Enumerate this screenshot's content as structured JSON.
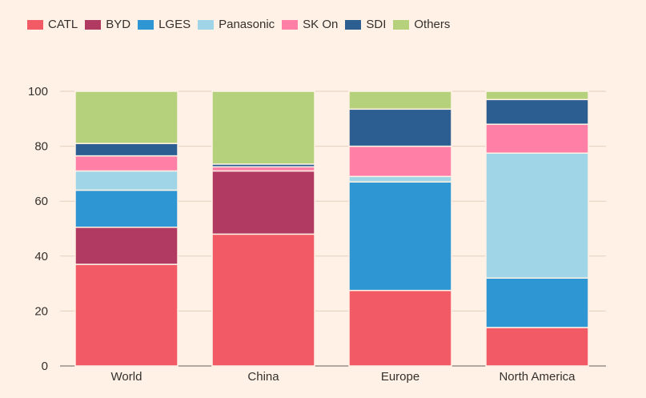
{
  "chart_data": {
    "type": "bar",
    "stacked": true,
    "title": "",
    "xlabel": "",
    "ylabel": "",
    "ylim": [
      0,
      100
    ],
    "yticks": [
      0,
      20,
      40,
      60,
      80,
      100
    ],
    "categories": [
      "World",
      "China",
      "Europe",
      "North America"
    ],
    "legend_position": "top-left",
    "grid": true,
    "series": [
      {
        "name": "CATL",
        "color": "#f25a66",
        "values": [
          37,
          48,
          27.5,
          14
        ]
      },
      {
        "name": "BYD",
        "color": "#b03a62",
        "values": [
          13.5,
          23,
          0,
          0
        ]
      },
      {
        "name": "LGES",
        "color": "#2e96d3",
        "values": [
          13.5,
          0,
          39.5,
          18
        ]
      },
      {
        "name": "Panasonic",
        "color": "#9fd5e6",
        "values": [
          7,
          0,
          2,
          45.5
        ]
      },
      {
        "name": "SK On",
        "color": "#ff7fa7",
        "values": [
          5.5,
          1.5,
          11,
          10.5
        ]
      },
      {
        "name": "SDI",
        "color": "#2c5e92",
        "values": [
          4.5,
          1,
          13.5,
          9
        ]
      },
      {
        "name": "Others",
        "color": "#b6d17c",
        "values": [
          19,
          26.5,
          6.5,
          3
        ]
      }
    ]
  }
}
